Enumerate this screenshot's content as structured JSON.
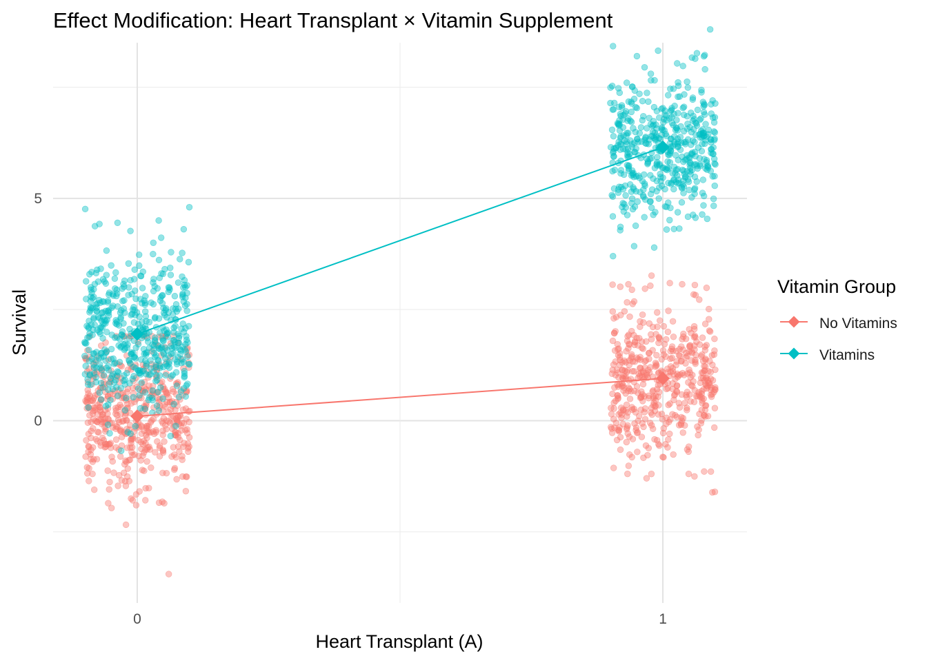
{
  "chart_data": {
    "type": "scatter",
    "title": "Effect Modification: Heart Transplant × Vitamin Supplement",
    "xlabel": "Heart Transplant (A)",
    "ylabel": "Survival",
    "x_ticks": [
      "0",
      "1"
    ],
    "y_ticks": [
      0,
      5
    ],
    "xlim": [
      -0.16,
      1.16
    ],
    "ylim": [
      -4.1,
      8.5
    ],
    "grid": true,
    "legend": {
      "title": "Vitamin Group",
      "placement": "right"
    },
    "jitter": {
      "x_width": 0.1,
      "points_per_cell": 500
    },
    "series": [
      {
        "name": "No Vitamins",
        "color": "#F8766D",
        "means": [
          {
            "x": 0,
            "y": 0.1
          },
          {
            "x": 1,
            "y": 0.95
          }
        ],
        "spread": [
          {
            "x": 0,
            "y_min": -3.4,
            "y_max": 1.9
          },
          {
            "x": 1,
            "y_min": -1.9,
            "y_max": 3.6
          }
        ],
        "outliers": [
          {
            "x": 0.06,
            "y": -3.45
          }
        ]
      },
      {
        "name": "Vitamins",
        "color": "#00BFC4",
        "means": [
          {
            "x": 0,
            "y": 1.95
          },
          {
            "x": 1,
            "y": 6.15
          }
        ],
        "spread": [
          {
            "x": 0,
            "y_min": -0.8,
            "y_max": 4.8
          },
          {
            "x": 1,
            "y_min": 3.7,
            "y_max": 8.8
          }
        ],
        "outliers": [
          {
            "x": 1.09,
            "y": 8.8
          }
        ]
      }
    ]
  }
}
